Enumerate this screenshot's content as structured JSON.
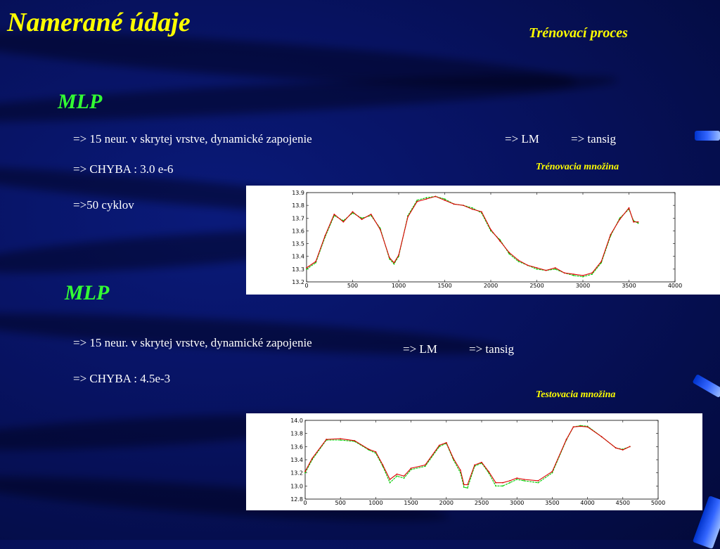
{
  "slide": {
    "title": "Namerané údaje",
    "subtitle": "Trénovací proces"
  },
  "section1": {
    "heading": "MLP",
    "line1": "=> 15 neur.  v skrytej vrstve, dynamické  zapojenie",
    "lm": "=> LM",
    "tansig": "=> tansig",
    "error": "=> CHYBA : 3.0 e-6",
    "cycles": "=>50 cyklov",
    "caption": "Trénovacia množina"
  },
  "section2": {
    "heading": "MLP",
    "line1": "=> 15 neur.  v skrytej vrstve, dynamické  zapojenie",
    "lm": "=> LM",
    "tansig": "=> tansig",
    "error": "=> CHYBA : 4.5e-3",
    "caption": "Testovacia množina"
  },
  "colors": {
    "background": "#071260",
    "title": "#ffff00",
    "heading": "#33ff33",
    "series_target": "#00cc00",
    "series_output": "#dd0000"
  },
  "chart_data": [
    {
      "type": "line",
      "title": "",
      "xlabel": "",
      "ylabel": "",
      "xlim": [
        0,
        4000
      ],
      "ylim": [
        13.2,
        13.9
      ],
      "xticks": [
        0,
        500,
        1000,
        1500,
        2000,
        2500,
        3000,
        3500,
        4000
      ],
      "yticks": [
        13.2,
        13.3,
        13.4,
        13.5,
        13.6,
        13.7,
        13.8,
        13.9
      ],
      "grid": false,
      "series": [
        {
          "color": "#00cc00",
          "x": [
            0,
            100,
            200,
            300,
            400,
            500,
            600,
            700,
            800,
            900,
            950,
            1000,
            1100,
            1200,
            1300,
            1400,
            1500,
            1600,
            1700,
            1800,
            1900,
            2000,
            2100,
            2200,
            2300,
            2400,
            2500,
            2600,
            2700,
            2800,
            2900,
            3000,
            3100,
            3200,
            3300,
            3400,
            3500,
            3550,
            3600
          ],
          "y": [
            13.3,
            13.35,
            13.55,
            13.72,
            13.68,
            13.74,
            13.7,
            13.72,
            13.62,
            13.38,
            13.34,
            13.4,
            13.72,
            13.84,
            13.86,
            13.87,
            13.85,
            13.81,
            13.8,
            13.78,
            13.74,
            13.6,
            13.53,
            13.42,
            13.36,
            13.33,
            13.3,
            13.29,
            13.3,
            13.27,
            13.25,
            13.24,
            13.26,
            13.35,
            13.56,
            13.7,
            13.77,
            13.68,
            13.66
          ]
        },
        {
          "color": "#dd0000",
          "x": [
            0,
            100,
            200,
            300,
            400,
            500,
            600,
            700,
            800,
            900,
            950,
            1000,
            1100,
            1200,
            1300,
            1400,
            1500,
            1600,
            1700,
            1800,
            1900,
            2000,
            2100,
            2200,
            2300,
            2400,
            2500,
            2600,
            2700,
            2800,
            2900,
            3000,
            3100,
            3200,
            3300,
            3400,
            3500,
            3550,
            3600
          ],
          "y": [
            13.31,
            13.36,
            13.56,
            13.73,
            13.67,
            13.75,
            13.69,
            13.73,
            13.61,
            13.39,
            13.35,
            13.41,
            13.71,
            13.83,
            13.85,
            13.87,
            13.84,
            13.81,
            13.8,
            13.77,
            13.75,
            13.61,
            13.52,
            13.43,
            13.37,
            13.33,
            13.31,
            13.29,
            13.31,
            13.27,
            13.26,
            13.25,
            13.27,
            13.36,
            13.57,
            13.69,
            13.78,
            13.67,
            13.67
          ]
        }
      ]
    },
    {
      "type": "line",
      "title": "",
      "xlabel": "",
      "ylabel": "",
      "xlim": [
        0,
        5000
      ],
      "ylim": [
        12.8,
        14.0
      ],
      "xticks": [
        0,
        500,
        1000,
        1500,
        2000,
        2500,
        3000,
        3500,
        4000,
        4500,
        5000
      ],
      "yticks": [
        12.8,
        13.0,
        13.2,
        13.4,
        13.6,
        13.8,
        14.0
      ],
      "grid": false,
      "series": [
        {
          "color": "#00cc00",
          "x": [
            0,
            100,
            300,
            500,
            700,
            900,
            1000,
            1100,
            1200,
            1300,
            1400,
            1500,
            1700,
            1900,
            2000,
            2100,
            2200,
            2250,
            2300,
            2400,
            2500,
            2600,
            2700,
            2800,
            2900,
            3000,
            3100,
            3300,
            3500,
            3700,
            3800,
            3900,
            4000,
            4200,
            4400,
            4500,
            4600
          ],
          "y": [
            13.2,
            13.4,
            13.7,
            13.7,
            13.68,
            13.55,
            13.5,
            13.3,
            13.05,
            13.15,
            13.12,
            13.25,
            13.3,
            13.6,
            13.65,
            13.4,
            13.2,
            12.98,
            12.97,
            13.3,
            13.35,
            13.2,
            13.0,
            13.0,
            13.05,
            13.1,
            13.08,
            13.05,
            13.2,
            13.7,
            13.9,
            13.92,
            13.91,
            13.75,
            13.58,
            13.56,
            13.6
          ]
        },
        {
          "color": "#dd0000",
          "x": [
            0,
            100,
            300,
            500,
            700,
            900,
            1000,
            1100,
            1200,
            1300,
            1400,
            1500,
            1700,
            1900,
            2000,
            2100,
            2200,
            2250,
            2300,
            2400,
            2500,
            2600,
            2700,
            2800,
            2900,
            3000,
            3100,
            3300,
            3500,
            3700,
            3800,
            3900,
            4000,
            4200,
            4400,
            4500,
            4600
          ],
          "y": [
            13.22,
            13.42,
            13.71,
            13.72,
            13.69,
            13.56,
            13.52,
            13.32,
            13.1,
            13.18,
            13.15,
            13.27,
            13.32,
            13.62,
            13.66,
            13.42,
            13.24,
            13.02,
            13.02,
            13.32,
            13.36,
            13.22,
            13.05,
            13.05,
            13.08,
            13.12,
            13.1,
            13.08,
            13.22,
            13.71,
            13.9,
            13.91,
            13.9,
            13.75,
            13.58,
            13.55,
            13.6
          ]
        }
      ]
    }
  ]
}
